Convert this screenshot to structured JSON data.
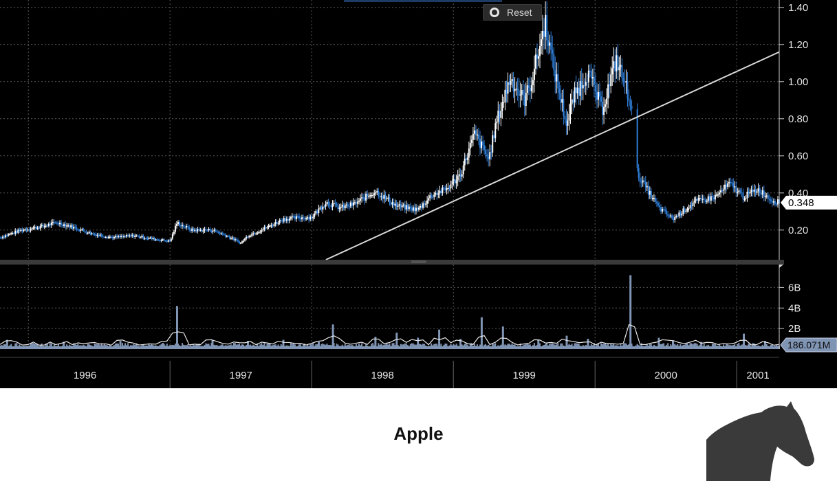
{
  "toolbar": {
    "reset_label": "Reset"
  },
  "caption": "Apple",
  "logo": {
    "icon": "horse-head-icon",
    "color": "#3a3a3a"
  },
  "colors": {
    "background": "#000000",
    "up_candle": "#ffffff",
    "down_candle": "#2f7ed8",
    "grid": "#5a5a5a",
    "trendline": "#d9d9d9",
    "volume": "#8094b4",
    "volume_ma": "#e8e8e8"
  },
  "chart_data": [
    {
      "type": "line",
      "subtype": "candlestick",
      "title": "",
      "xlabel": "",
      "ylabel": "",
      "x_tick_labels": [
        "1996",
        "1997",
        "1998",
        "1999",
        "2000",
        "2001"
      ],
      "y_tick_labels": [
        "0.20",
        "0.40",
        "0.60",
        "0.80",
        "1.00",
        "1.20",
        "1.40"
      ],
      "ylim": [
        0.04,
        1.44
      ],
      "xlim": [
        1995.8,
        2001.3
      ],
      "last_price_label": "0.348",
      "grid": true,
      "series": [
        {
          "x": [
            1995.8,
            1995.95,
            1996.1,
            1996.2,
            1996.3,
            1996.45,
            1996.6,
            1996.75,
            1996.9,
            1997.0,
            1997.05,
            1997.15,
            1997.3,
            1997.4,
            1997.5,
            1997.55,
            1997.7,
            1997.8,
            1998.0,
            1998.1,
            1998.2,
            1998.3,
            1998.45,
            1998.6,
            1998.75,
            1998.85,
            1998.95,
            1999.05,
            1999.15,
            1999.25,
            1999.3,
            1999.4,
            1999.5,
            1999.55,
            1999.65,
            1999.7,
            1999.8,
            1999.85,
            1999.95,
            2000.05,
            2000.15,
            2000.25,
            2000.3,
            2000.45,
            2000.55,
            2000.7,
            2000.85,
            2000.95,
            2001.05,
            2001.15,
            2001.25,
            2001.3
          ],
          "values": [
            0.16,
            0.2,
            0.22,
            0.24,
            0.22,
            0.18,
            0.16,
            0.17,
            0.15,
            0.14,
            0.24,
            0.2,
            0.2,
            0.17,
            0.13,
            0.17,
            0.22,
            0.26,
            0.27,
            0.35,
            0.32,
            0.34,
            0.41,
            0.33,
            0.31,
            0.39,
            0.42,
            0.5,
            0.72,
            0.58,
            0.77,
            1.02,
            0.9,
            1.0,
            1.32,
            1.1,
            0.77,
            0.92,
            1.05,
            0.85,
            1.12,
            0.9,
            0.5,
            0.32,
            0.26,
            0.35,
            0.38,
            0.45,
            0.38,
            0.42,
            0.36,
            0.348
          ]
        }
      ],
      "annotations": [
        {
          "type": "trendline",
          "from": [
            1998.1,
            0.04
          ],
          "to": [
            2001.3,
            1.16
          ]
        }
      ]
    },
    {
      "type": "bar",
      "title": "",
      "y_tick_labels": [
        "2B",
        "4B",
        "6B"
      ],
      "ylim": [
        0,
        7.5
      ],
      "last_value_label": "186.071M",
      "grid": true,
      "series": [
        {
          "name": "",
          "spikes_x": [
            1995.85,
            1996.25,
            1996.65,
            1996.95,
            1997.05,
            1997.3,
            1997.55,
            1997.8,
            1998.05,
            1998.15,
            1998.45,
            1998.6,
            1998.75,
            1998.9,
            1999.05,
            1999.2,
            1999.35,
            1999.6,
            1999.8,
            1999.95,
            2000.25,
            2000.45,
            2000.55,
            2000.75,
            2001.05,
            2001.2
          ],
          "spikes_values": [
            0.9,
            0.7,
            0.8,
            0.6,
            4.2,
            0.9,
            0.8,
            0.9,
            0.7,
            2.4,
            1.2,
            1.6,
            1.1,
            1.9,
            1.0,
            3.1,
            2.2,
            0.9,
            1.3,
            1.0,
            7.2,
            1.1,
            0.8,
            0.7,
            1.5,
            0.8
          ]
        }
      ]
    }
  ]
}
